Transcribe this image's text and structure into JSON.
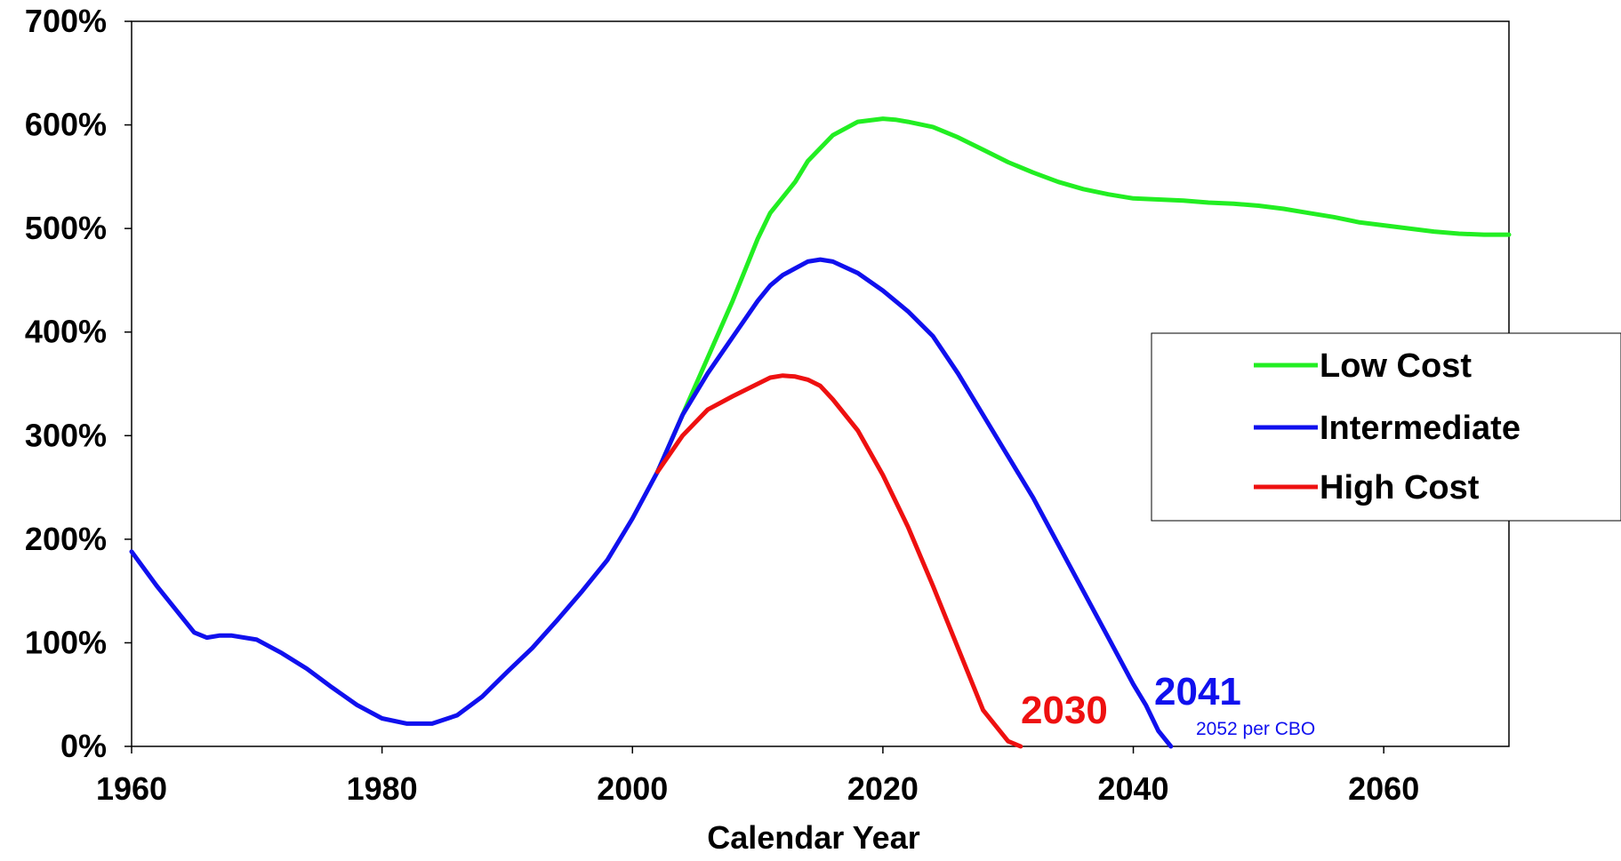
{
  "chart_data": {
    "type": "line",
    "title": "",
    "xlabel": "Calendar Year",
    "ylabel": "",
    "xlim": [
      1960,
      2070
    ],
    "ylim": [
      0,
      700
    ],
    "grid": false,
    "x_ticks": [
      1960,
      1980,
      2000,
      2020,
      2040,
      2060
    ],
    "x_tick_labels": [
      "1960",
      "1980",
      "2000",
      "2020",
      "2040",
      "2060"
    ],
    "y_ticks": [
      0,
      100,
      200,
      300,
      400,
      500,
      600,
      700
    ],
    "y_tick_labels": [
      "0%",
      "100%",
      "200%",
      "300%",
      "400%",
      "500%",
      "600%",
      "700%"
    ],
    "legend_position": "right",
    "series": [
      {
        "name": "Low Cost",
        "color": "#22ee22",
        "x": [
          2002,
          2004,
          2006,
          2008,
          2010,
          2011,
          2013,
          2014,
          2016,
          2018,
          2020,
          2021,
          2022,
          2024,
          2026,
          2028,
          2030,
          2032,
          2034,
          2036,
          2038,
          2040,
          2042,
          2044,
          2046,
          2048,
          2050,
          2052,
          2054,
          2056,
          2058,
          2060,
          2062,
          2064,
          2066,
          2068,
          2070
        ],
        "values": [
          265,
          320,
          375,
          430,
          490,
          515,
          545,
          565,
          590,
          603,
          606,
          605,
          603,
          598,
          588,
          576,
          564,
          554,
          545,
          538,
          533,
          529,
          528,
          527,
          525,
          524,
          522,
          519,
          515,
          511,
          506,
          503,
          500,
          497,
          495,
          494,
          494
        ]
      },
      {
        "name": "Intermediate",
        "color": "#1010ee",
        "x": [
          1960,
          1962,
          1964,
          1965,
          1966,
          1967,
          1968,
          1970,
          1972,
          1974,
          1976,
          1978,
          1980,
          1982,
          1984,
          1986,
          1988,
          1990,
          1992,
          1994,
          1996,
          1998,
          2000,
          2002,
          2004,
          2006,
          2008,
          2010,
          2011,
          2012,
          2014,
          2015,
          2016,
          2018,
          2020,
          2022,
          2024,
          2026,
          2028,
          2030,
          2032,
          2034,
          2036,
          2038,
          2040,
          2041,
          2042,
          2043
        ],
        "values": [
          188,
          155,
          125,
          110,
          105,
          107,
          107,
          103,
          90,
          75,
          57,
          40,
          27,
          22,
          22,
          30,
          48,
          72,
          95,
          122,
          150,
          180,
          220,
          265,
          320,
          360,
          395,
          430,
          445,
          455,
          468,
          470,
          468,
          457,
          440,
          420,
          396,
          360,
          320,
          280,
          240,
          195,
          150,
          105,
          60,
          40,
          15,
          0
        ]
      },
      {
        "name": "High Cost",
        "color": "#ee1010",
        "x": [
          2002,
          2004,
          2006,
          2008,
          2010,
          2011,
          2012,
          2013,
          2014,
          2015,
          2016,
          2018,
          2020,
          2022,
          2024,
          2026,
          2028,
          2030,
          2031
        ],
        "values": [
          265,
          300,
          325,
          338,
          350,
          356,
          358,
          357,
          354,
          348,
          335,
          305,
          262,
          212,
          155,
          95,
          35,
          5,
          0
        ]
      }
    ],
    "annotations": {
      "high_cost_year": "2030",
      "intermediate_year": "2041",
      "cbo_note": "2052 per CBO"
    }
  }
}
